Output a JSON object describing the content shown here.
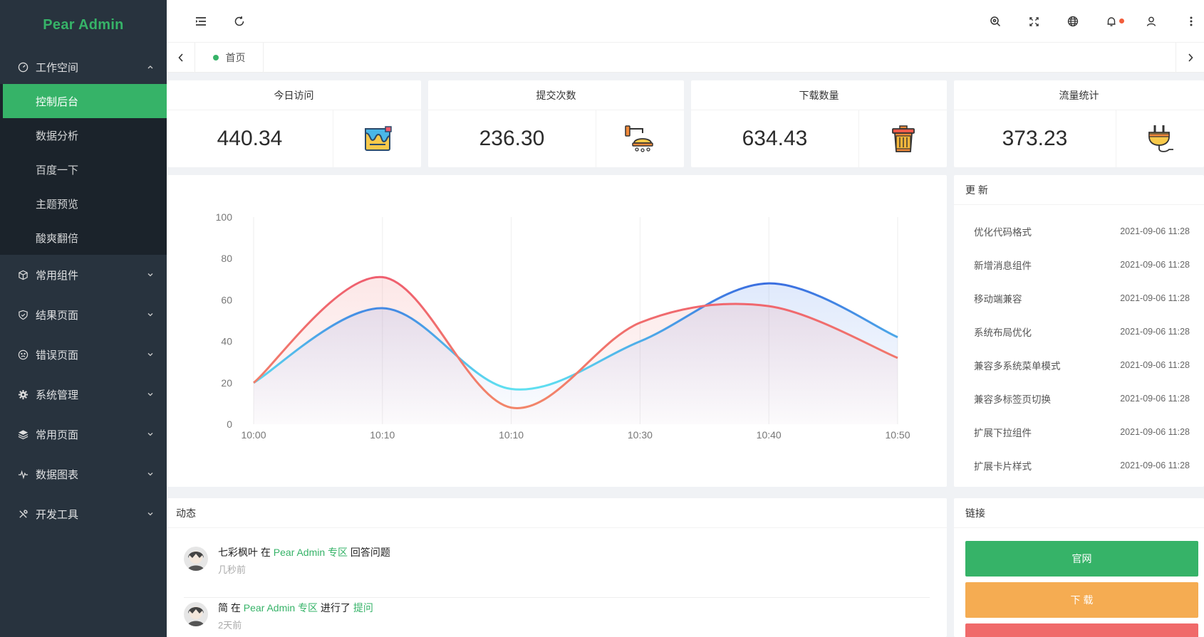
{
  "app": {
    "title": "Pear Admin"
  },
  "sidebar": {
    "groups": [
      {
        "label": "工作空间",
        "icon": "dashboard-icon",
        "expanded": true,
        "children": [
          "控制后台",
          "数据分析",
          "百度一下",
          "主题预览",
          "酸爽翻倍"
        ],
        "active": "控制后台"
      },
      {
        "label": "常用组件",
        "icon": "cube-icon"
      },
      {
        "label": "结果页面",
        "icon": "shield-check-icon"
      },
      {
        "label": "错误页面",
        "icon": "sad-face-icon"
      },
      {
        "label": "系统管理",
        "icon": "gear-icon"
      },
      {
        "label": "常用页面",
        "icon": "layers-icon"
      },
      {
        "label": "数据图表",
        "icon": "pulse-icon"
      },
      {
        "label": "开发工具",
        "icon": "tools-icon"
      }
    ]
  },
  "header": {
    "left_icons": [
      "menu-fold-icon",
      "refresh-icon"
    ],
    "right_icons": [
      "search-icon",
      "fullscreen-icon",
      "globe-icon",
      "bell-icon",
      "user-icon",
      "more-icon"
    ],
    "notification_dot": true
  },
  "tabs": [
    {
      "label": "首页",
      "active": true
    }
  ],
  "stats": [
    {
      "title": "今日访问",
      "value": "440.34",
      "icon": "paint-bucket-icon"
    },
    {
      "title": "提交次数",
      "value": "236.30",
      "icon": "shower-icon"
    },
    {
      "title": "下载数量",
      "value": "634.43",
      "icon": "trash-bin-icon"
    },
    {
      "title": "流量统计",
      "value": "373.23",
      "icon": "plug-icon"
    }
  ],
  "chart_data": {
    "type": "area",
    "categories": [
      "10:00",
      "10:10",
      "10:10",
      "10:30",
      "10:40",
      "10:50"
    ],
    "series": [
      {
        "values": [
          20,
          56,
          17,
          40,
          68,
          42
        ],
        "color": "#3b7be0"
      },
      {
        "values": [
          20,
          71,
          8,
          49,
          57,
          32
        ],
        "color": "#ef6a6a"
      }
    ],
    "ylim": [
      0,
      100
    ],
    "yticks": [
      0,
      20,
      40,
      60,
      80,
      100
    ],
    "grid": "vertical",
    "legend": "none"
  },
  "updates": {
    "title": "更 新",
    "items": [
      {
        "name": "优化代码格式",
        "time": "2021-09-06 11:28"
      },
      {
        "name": "新增消息组件",
        "time": "2021-09-06 11:28"
      },
      {
        "name": "移动端兼容",
        "time": "2021-09-06 11:28"
      },
      {
        "name": "系统布局优化",
        "time": "2021-09-06 11:28"
      },
      {
        "name": "兼容多系统菜单模式",
        "time": "2021-09-06 11:28"
      },
      {
        "name": "兼容多标签页切换",
        "time": "2021-09-06 11:28"
      },
      {
        "name": "扩展下拉组件",
        "time": "2021-09-06 11:28"
      },
      {
        "name": "扩展卡片样式",
        "time": "2021-09-06 11:28"
      }
    ]
  },
  "activity": {
    "title": "动态",
    "items": [
      {
        "user": "七彩枫叶",
        "in": " 在 ",
        "place": "Pear Admin 专区",
        "action": " 回答问题",
        "target": "",
        "time": "几秒前"
      },
      {
        "user": "简",
        "in": " 在 ",
        "place": "Pear Admin 专区",
        "action": " 进行了 ",
        "target": "提问",
        "time": "2天前"
      }
    ]
  },
  "links": {
    "title": "链接",
    "buttons": [
      {
        "label": "官网",
        "color": "#36b368"
      },
      {
        "label": "下 载",
        "color": "#f5ac52"
      },
      {
        "label": "",
        "color": "#f06a6a"
      }
    ]
  }
}
